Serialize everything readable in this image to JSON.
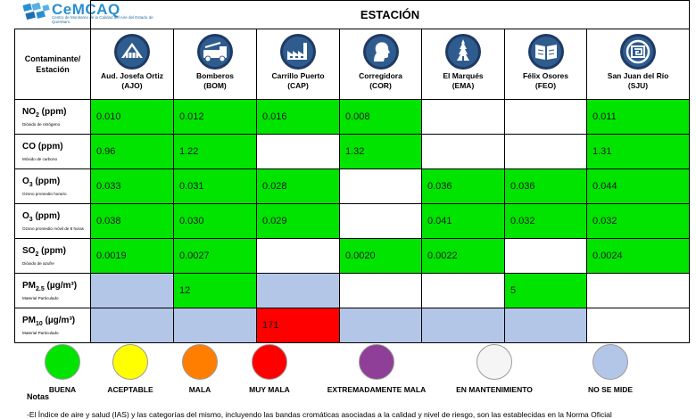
{
  "logo": {
    "brand": "CeMCAQ",
    "subtitle": "Centro de Monitoreo de la Calidad del Aire del Estado de Querétaro"
  },
  "title": "ESTACIÓN",
  "corner": {
    "line1": "Contaminante/",
    "line2": "Estación"
  },
  "stations": [
    {
      "name": "Aud. Josefa Ortiz",
      "code": "(AJO)",
      "icon": "building-icon"
    },
    {
      "name": "Bomberos",
      "code": "(BOM)",
      "icon": "fire-truck-icon"
    },
    {
      "name": "Carrillo Puerto",
      "code": "(CAP)",
      "icon": "factory-icon"
    },
    {
      "name": "Corregidora",
      "code": "(COR)",
      "icon": "profile-silhouette-icon"
    },
    {
      "name": "El Marqués",
      "code": "(EMA)",
      "icon": "church-tower-icon"
    },
    {
      "name": "Félix Osores",
      "code": "(FEO)",
      "icon": "open-book-icon"
    },
    {
      "name": "San Juan del Río",
      "code": "(SJU)",
      "icon": "emblem-icon"
    }
  ],
  "pollutants": [
    {
      "base": "NO",
      "sub": "2",
      "unit": " (ppm)",
      "desc": "Dióxido de nitrógeno"
    },
    {
      "base": "CO",
      "sub": "",
      "unit": " (ppm)",
      "desc": "Móxido de carbono"
    },
    {
      "base": "O",
      "sub": "3",
      "unit": " (ppm)",
      "desc": "Ozono promedio horario"
    },
    {
      "base": "O",
      "sub": "3",
      "unit": " (ppm)",
      "desc": "Ozono promedio móvil de 8 horas"
    },
    {
      "base": "SO",
      "sub": "2",
      "unit": " (ppm)",
      "desc": "Dióxido de azufre"
    },
    {
      "base": "PM",
      "sub": "2.5",
      "unit": " (µg/m³)",
      "desc": "Material Particulado"
    },
    {
      "base": "PM",
      "sub": "10",
      "unit": " (µg/m³)",
      "desc": "Material Particulado"
    }
  ],
  "values": [
    [
      {
        "v": "0.010",
        "c": "green"
      },
      {
        "v": "0.012",
        "c": "green"
      },
      {
        "v": "0.016",
        "c": "green"
      },
      {
        "v": "0.008",
        "c": "green"
      },
      {
        "v": "",
        "c": "white"
      },
      {
        "v": "",
        "c": "white"
      },
      {
        "v": "0.011",
        "c": "green"
      }
    ],
    [
      {
        "v": "0.96",
        "c": "green"
      },
      {
        "v": "1.22",
        "c": "green"
      },
      {
        "v": "",
        "c": "white"
      },
      {
        "v": "1.32",
        "c": "green"
      },
      {
        "v": "",
        "c": "white"
      },
      {
        "v": "",
        "c": "white"
      },
      {
        "v": "1.31",
        "c": "green"
      }
    ],
    [
      {
        "v": "0.033",
        "c": "green"
      },
      {
        "v": "0.031",
        "c": "green"
      },
      {
        "v": "0.028",
        "c": "green"
      },
      {
        "v": "",
        "c": "white"
      },
      {
        "v": "0.036",
        "c": "green"
      },
      {
        "v": "0.036",
        "c": "green"
      },
      {
        "v": "0.044",
        "c": "green"
      }
    ],
    [
      {
        "v": "0.038",
        "c": "green"
      },
      {
        "v": "0.030",
        "c": "green"
      },
      {
        "v": "0.029",
        "c": "green"
      },
      {
        "v": "",
        "c": "white"
      },
      {
        "v": "0.041",
        "c": "green"
      },
      {
        "v": "0.032",
        "c": "green"
      },
      {
        "v": "0.032",
        "c": "green"
      }
    ],
    [
      {
        "v": "0.0019",
        "c": "green"
      },
      {
        "v": "0.0027",
        "c": "green"
      },
      {
        "v": "",
        "c": "white"
      },
      {
        "v": "0.0020",
        "c": "green"
      },
      {
        "v": "0.0022",
        "c": "green"
      },
      {
        "v": "",
        "c": "white"
      },
      {
        "v": "0.0024",
        "c": "green"
      }
    ],
    [
      {
        "v": "",
        "c": "blue"
      },
      {
        "v": "12",
        "c": "green"
      },
      {
        "v": "",
        "c": "blue"
      },
      {
        "v": "",
        "c": "white"
      },
      {
        "v": "",
        "c": "white"
      },
      {
        "v": "5",
        "c": "green"
      },
      {
        "v": "",
        "c": "white"
      }
    ],
    [
      {
        "v": "",
        "c": "blue"
      },
      {
        "v": "",
        "c": "blue"
      },
      {
        "v": "171",
        "c": "red"
      },
      {
        "v": "",
        "c": "blue"
      },
      {
        "v": "",
        "c": "blue"
      },
      {
        "v": "",
        "c": "blue"
      },
      {
        "v": "",
        "c": "white"
      }
    ]
  ],
  "colors": {
    "green": "#00e400",
    "white": "#ffffff",
    "blue": "#b4c6e7",
    "red": "#ff0000"
  },
  "legend": [
    {
      "label": "BUENA",
      "color": "#00e400"
    },
    {
      "label": "ACEPTABLE",
      "color": "#ffff00"
    },
    {
      "label": "MALA",
      "color": "#ff7e00"
    },
    {
      "label": "MUY MALA",
      "color": "#ff0000"
    },
    {
      "label": "EXTREMADAMENTE  MALA",
      "color": "#8f3f97"
    },
    {
      "label": "EN MANTENIMIENTO",
      "color": "#f5f5f5"
    },
    {
      "label": "NO SE MIDE",
      "color": "#b4c6e7"
    }
  ],
  "notes": {
    "title": "Notas",
    "text": "-El Índice de aire y salud (IAS) y las categorías del mismo, incluyendo las bandas cromáticas asociadas a la calidad y nivel de riesgo, son las establecidas en la Norma Oficial"
  }
}
